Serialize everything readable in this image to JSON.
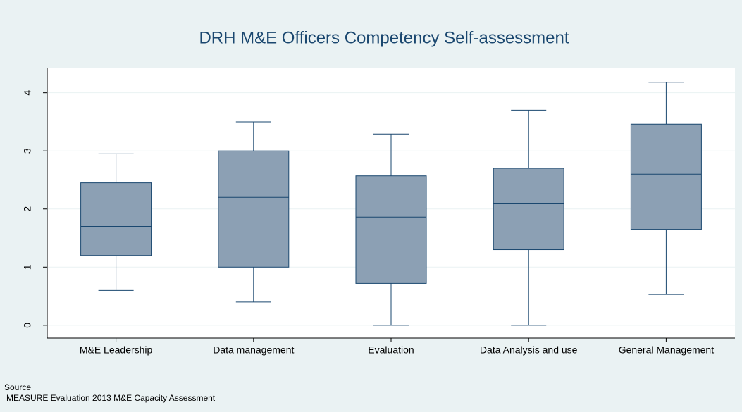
{
  "chart_data": {
    "type": "box",
    "title": "DRH M&E Officers Competency Self-assessment",
    "categories": [
      "M&E Leadership",
      "Data management",
      "Evaluation",
      "Data Analysis and use",
      "General Management"
    ],
    "boxes": {
      "min": [
        0.6,
        0.4,
        0,
        0,
        0.53
      ],
      "q1": [
        1.2,
        1.0,
        0.72,
        1.3,
        1.65
      ],
      "median": [
        1.7,
        2.2,
        1.86,
        2.1,
        2.6
      ],
      "q3": [
        2.45,
        3.0,
        2.57,
        2.7,
        3.46
      ],
      "max": [
        2.95,
        3.5,
        3.29,
        3.7,
        4.18
      ]
    },
    "color": "#8ca0b4",
    "ylim": [
      -0.22,
      4.42
    ],
    "yticks": [
      0,
      1,
      2,
      3,
      4
    ],
    "grid": true,
    "source_label": "Source",
    "source_text": "MEASURE Evaluation 2013 M&E Capacity Assessment"
  }
}
